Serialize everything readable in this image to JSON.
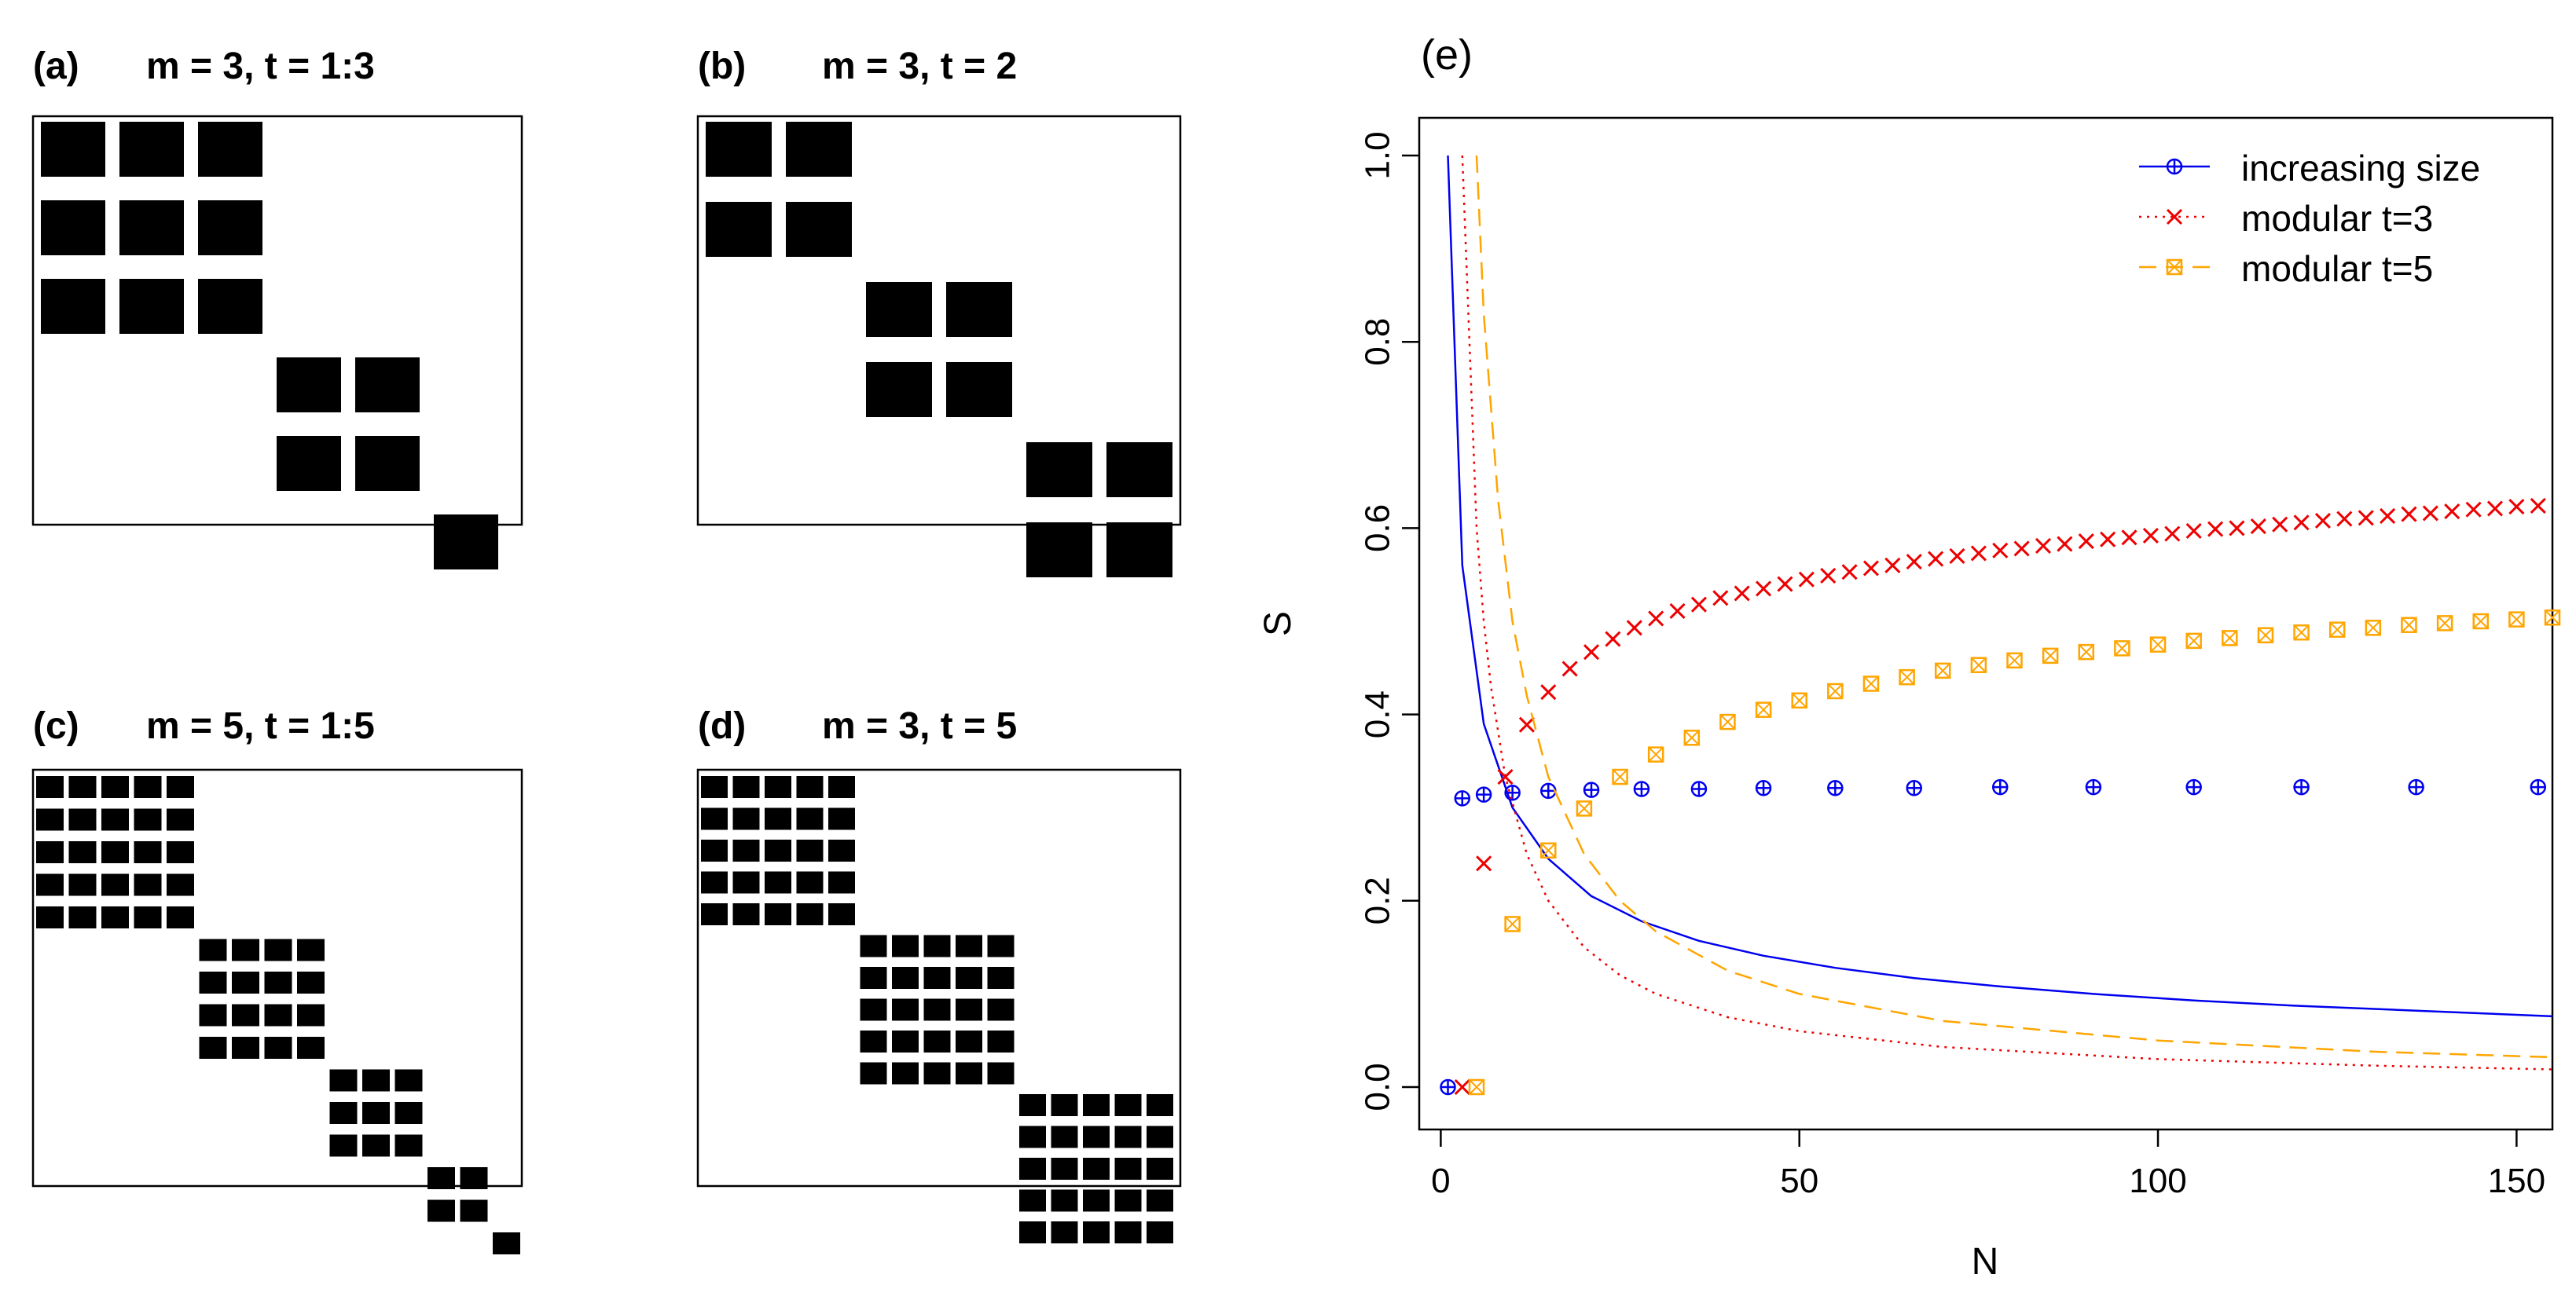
{
  "colors": {
    "blue": "#0000ee",
    "red": "#ee0000",
    "orange": "#ffa500",
    "black": "#000000"
  },
  "chart_data": [
    {
      "type": "heatmap",
      "panel_label": "(a)",
      "title": "m = 3, t = 1:3",
      "blocks": [
        3,
        2,
        1
      ],
      "cells": 6,
      "cell_style": "large"
    },
    {
      "type": "heatmap",
      "panel_label": "(b)",
      "title": "m = 3, t = 2",
      "blocks": [
        2,
        2,
        2
      ],
      "cells": 6,
      "cell_style": "large"
    },
    {
      "type": "heatmap",
      "panel_label": "(c)",
      "title": "m = 5, t = 1:5",
      "blocks": [
        5,
        4,
        3,
        2,
        1
      ],
      "cells": 15,
      "cell_style": "small"
    },
    {
      "type": "heatmap",
      "panel_label": "(d)",
      "title": "m = 3, t = 5",
      "blocks": [
        5,
        5,
        5
      ],
      "cells": 15,
      "cell_style": "small"
    },
    {
      "type": "line",
      "panel_label": "(e)",
      "xlabel": "N",
      "ylabel": "S",
      "xlim": [
        -3,
        155
      ],
      "ylim": [
        -0.04,
        1.04
      ],
      "xticks": [
        0,
        50,
        100,
        150
      ],
      "yticks": [
        0.0,
        0.2,
        0.4,
        0.6,
        0.8,
        1.0
      ],
      "grid": false,
      "legend_position": "top-right",
      "series": [
        {
          "name": "increasing size",
          "color": "blue",
          "points_x": [
            1,
            3,
            6,
            10,
            15,
            21,
            28,
            36,
            45,
            55,
            66,
            78,
            91,
            105,
            120,
            136,
            153
          ],
          "points_y": [
            0.0,
            0.31,
            0.314,
            0.316,
            0.318,
            0.319,
            0.32,
            0.32,
            0.321,
            0.321,
            0.321,
            0.322,
            0.322,
            0.322,
            0.322,
            0.322,
            0.322
          ],
          "line_x": [
            1,
            3,
            6,
            10,
            15,
            21,
            28,
            36,
            45,
            55,
            66,
            78,
            91,
            105,
            120,
            136,
            155
          ],
          "line_y": [
            1.0,
            0.56,
            0.39,
            0.3,
            0.245,
            0.205,
            0.178,
            0.157,
            0.141,
            0.128,
            0.117,
            0.108,
            0.1,
            0.093,
            0.087,
            0.082,
            0.076
          ]
        },
        {
          "name": "modular  t=3",
          "color": "red",
          "points_x": [
            3,
            6,
            9,
            12,
            15,
            18,
            21,
            24,
            27,
            30,
            33,
            36,
            39,
            42,
            45,
            48,
            51,
            54,
            57,
            60,
            63,
            66,
            69,
            72,
            75,
            78,
            81,
            84,
            87,
            90,
            93,
            96,
            99,
            102,
            105,
            108,
            111,
            114,
            117,
            120,
            123,
            126,
            129,
            132,
            135,
            138,
            141,
            144,
            147,
            150,
            153
          ],
          "points_y": [
            0.0,
            0.24,
            0.333,
            0.389,
            0.424,
            0.449,
            0.467,
            0.481,
            0.493,
            0.503,
            0.511,
            0.518,
            0.525,
            0.53,
            0.535,
            0.54,
            0.545,
            0.549,
            0.553,
            0.557,
            0.56,
            0.564,
            0.567,
            0.57,
            0.573,
            0.576,
            0.578,
            0.581,
            0.583,
            0.586,
            0.588,
            0.59,
            0.592,
            0.594,
            0.597,
            0.599,
            0.6,
            0.602,
            0.604,
            0.606,
            0.608,
            0.61,
            0.611,
            0.613,
            0.615,
            0.616,
            0.618,
            0.62,
            0.621,
            0.623,
            0.624
          ],
          "line_x": [
            3,
            5,
            6,
            7,
            9,
            12,
            15,
            20,
            25,
            30,
            40,
            50,
            70,
            100,
            130,
            155
          ],
          "line_y": [
            1.0,
            0.6,
            0.5,
            0.43,
            0.333,
            0.25,
            0.2,
            0.15,
            0.12,
            0.1,
            0.075,
            0.06,
            0.043,
            0.03,
            0.023,
            0.019
          ]
        },
        {
          "name": "modular  t=5",
          "color": "orange",
          "points_x": [
            5,
            10,
            15,
            20,
            25,
            30,
            35,
            40,
            45,
            50,
            55,
            60,
            65,
            70,
            75,
            80,
            85,
            90,
            95,
            100,
            105,
            110,
            115,
            120,
            125,
            130,
            135,
            140,
            145,
            150,
            155
          ],
          "points_y": [
            0.0,
            0.175,
            0.254,
            0.299,
            0.333,
            0.357,
            0.375,
            0.392,
            0.405,
            0.415,
            0.425,
            0.433,
            0.44,
            0.447,
            0.453,
            0.458,
            0.463,
            0.467,
            0.471,
            0.475,
            0.479,
            0.482,
            0.485,
            0.488,
            0.491,
            0.493,
            0.496,
            0.498,
            0.5,
            0.502,
            0.504
          ],
          "line_x": [
            5,
            6,
            8,
            10,
            12,
            15,
            20,
            25,
            30,
            40,
            50,
            70,
            100,
            130,
            155
          ],
          "line_y": [
            1.0,
            0.83,
            0.63,
            0.5,
            0.42,
            0.333,
            0.25,
            0.2,
            0.167,
            0.125,
            0.1,
            0.071,
            0.05,
            0.038,
            0.032
          ]
        }
      ]
    }
  ]
}
